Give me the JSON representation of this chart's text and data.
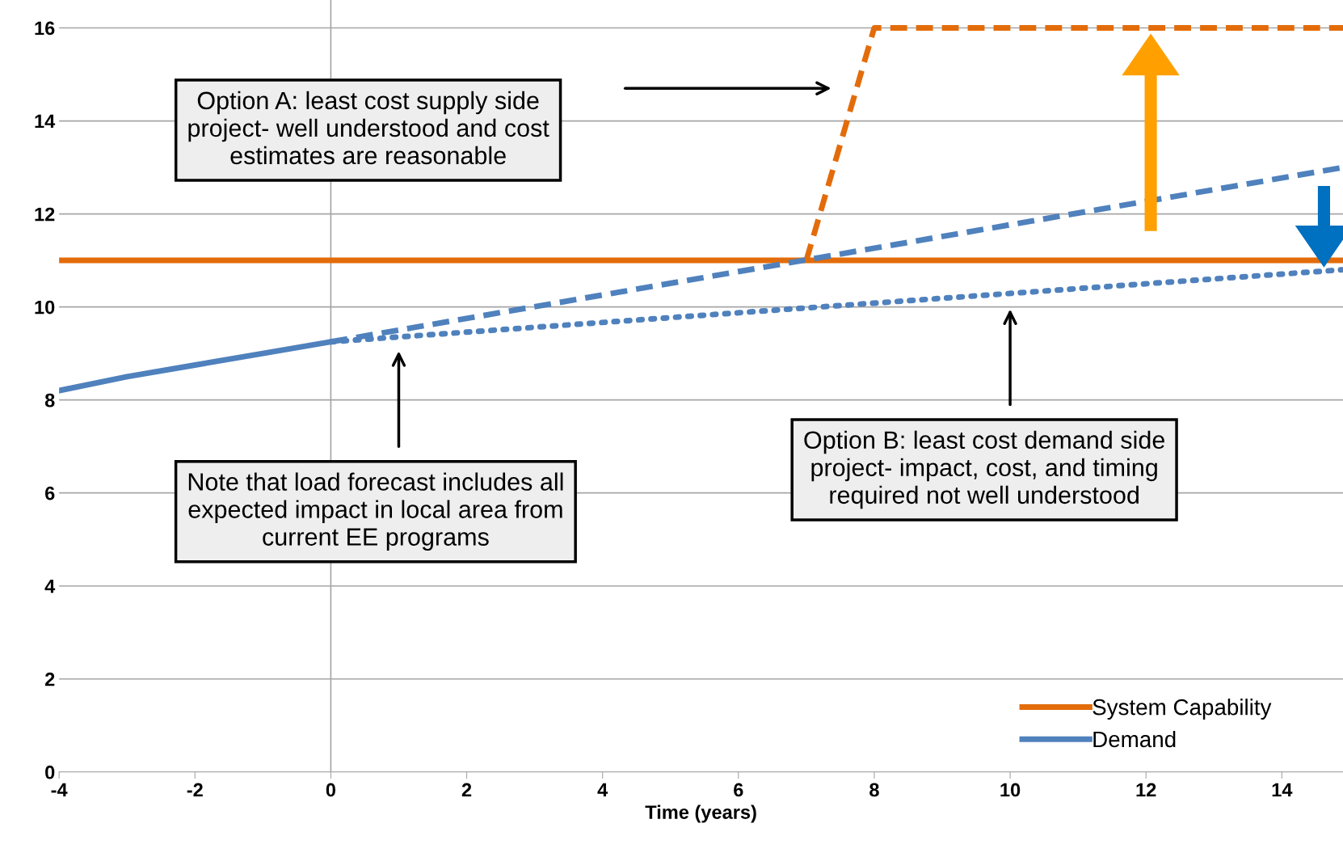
{
  "chart_data": {
    "type": "line",
    "xlabel": "Time (years)",
    "xlim": [
      -4,
      14.9
    ],
    "ylim": [
      0,
      16.6
    ],
    "xticks": [
      -4,
      -2,
      0,
      2,
      4,
      6,
      8,
      10,
      12,
      14
    ],
    "yticks": [
      0,
      2,
      4,
      6,
      8,
      10,
      12,
      14,
      16
    ],
    "grid": "y",
    "legend": "bottom right",
    "series": [
      {
        "name": "System Capability",
        "color": "#e36c0a",
        "x": [
          -4,
          14.9
        ],
        "values": [
          11,
          11
        ],
        "line_style": "solid"
      },
      {
        "color": "#e36c0a",
        "x": [
          7,
          8,
          14.9
        ],
        "values": [
          11,
          16,
          16
        ],
        "line_style": "dashed"
      },
      {
        "name": "Demand",
        "color": "#4f81bd",
        "x": [
          -4,
          -3,
          -2,
          -1,
          0
        ],
        "values": [
          8.2,
          8.5,
          8.75,
          9.0,
          9.25
        ],
        "line_style": "solid"
      },
      {
        "color": "#4f81bd",
        "x": [
          0,
          14.9
        ],
        "values": [
          9.25,
          13.0
        ],
        "line_style": "dashed"
      },
      {
        "color": "#4f81bd",
        "x": [
          0,
          14.9
        ],
        "values": [
          9.25,
          10.8
        ],
        "line_style": "dotted"
      }
    ],
    "ref_lines": [
      {
        "axis": "x",
        "value": 0,
        "color": "#a6a6a6"
      }
    ],
    "annotations": [
      "Option A: least cost supply side\nproject- well understood and cost\nestimates are reasonable",
      "Note that load forecast includes all\nexpected impact in local area from\ncurrent EE programs",
      "Option B: least cost demand side\nproject- impact, cost, and timing\nrequired not well understood"
    ]
  }
}
